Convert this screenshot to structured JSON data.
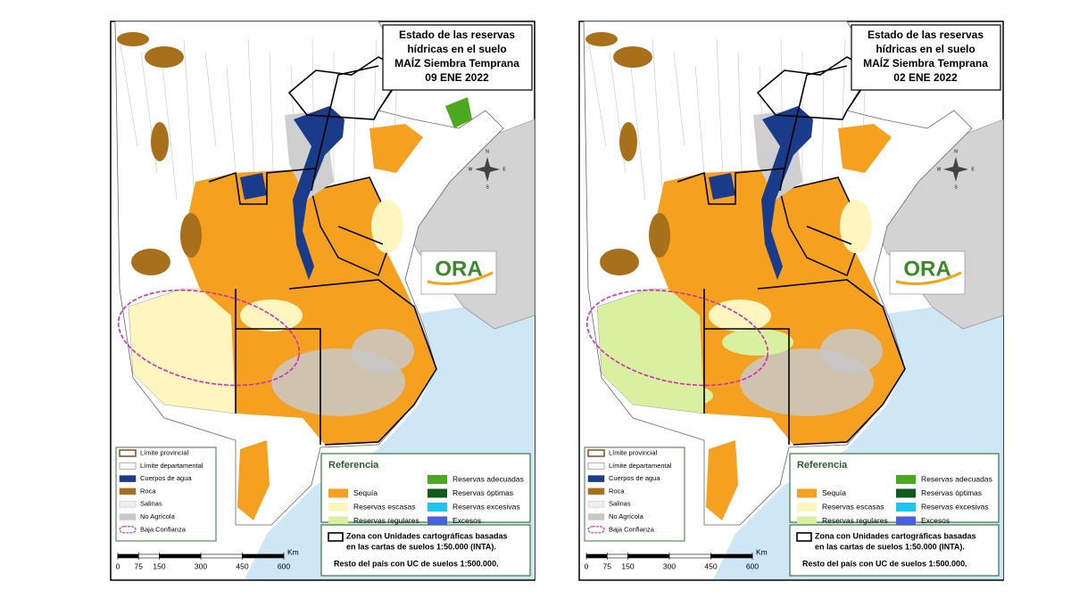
{
  "panels": [
    {
      "title": [
        "Estado de las reservas",
        "hídricas en el suelo",
        "MAÍZ Siembra Temprana",
        "09 ENE 2022"
      ]
    },
    {
      "title": [
        "Estado de las reservas",
        "hídricas en el suelo",
        "MAÍZ Siembra Temprana",
        "02 ENE 2022"
      ]
    }
  ],
  "logo": "ORA",
  "compass": [
    "N",
    "S",
    "E",
    "W"
  ],
  "legend": [
    "Límite provincial",
    "Límite departamental",
    "Cuerpos de agua",
    "Roca",
    "Salinas",
    "No Agrícola",
    "Baja Confianza"
  ],
  "reference": {
    "title": "Referencia",
    "items": [
      "Sequía",
      "Reservas escasas",
      "Reservas regulares",
      "Reservas adecuadas",
      "Reservas óptimas",
      "Reservas excesivas",
      "Excesos"
    ]
  },
  "note": [
    "Zona con Unidades cartográficas basadas",
    "en las cartas de suelos 1:50.000 (INTA).",
    "Resto del país con UC de suelos 1:500.000."
  ],
  "scale": {
    "ticks": [
      0,
      75,
      150,
      300,
      450,
      600
    ],
    "unit": "Km"
  }
}
